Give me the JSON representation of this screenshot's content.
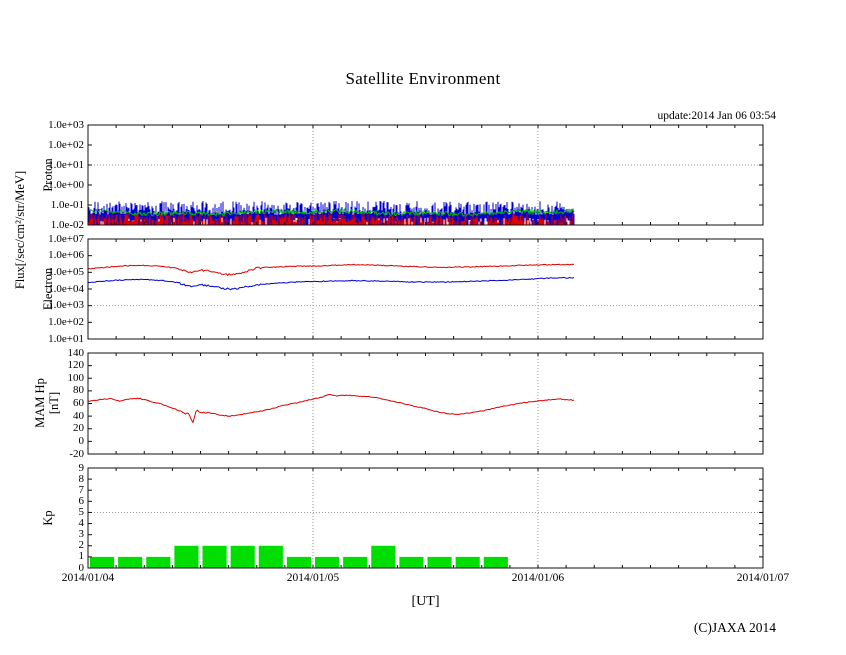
{
  "title": "Satellite Environment",
  "update_label": "update:2014 Jan 06 03:54",
  "flux_axis_label": "Flux[/sec/cm²/str/MeV]",
  "footer": {
    "xlabel": "[UT]",
    "copyright": "(C)JAXA 2014"
  },
  "colors": {
    "red": "#dd0000",
    "blue": "#0000cc",
    "green": "#00bb00",
    "kp_bar_green": "#00dd00",
    "grid_dotted": "#999999",
    "axis": "#111111"
  },
  "x_axis": {
    "tick_labels": [
      "2014/01/04",
      "2014/01/05",
      "2014/01/06",
      "2014/01/07"
    ],
    "span_days": 3,
    "minor_tick_hours": 3,
    "grid_day_lines": [
      1,
      2
    ],
    "data_end_day": 2.163
  },
  "chart_data": [
    {
      "id": "proton",
      "type": "line",
      "ylabel": "Proton",
      "yscale": "log",
      "ylim": [
        0.01,
        1000
      ],
      "ytick_labels": [
        "1.0e+03",
        "1.0e+02",
        "1.0e+01",
        "1.0e+00",
        "1.0e-01",
        "1.0e-02"
      ],
      "threshold_line": 10,
      "series": [
        {
          "name": "proton-high-noise",
          "color": "blue",
          "style": "noise-band",
          "band_low": 0.01,
          "band_top_min": 0.032,
          "band_top_max": 0.16
        },
        {
          "name": "proton-low-noise",
          "color": "red",
          "style": "noise-band",
          "band_low": 0.01,
          "band_top_min": 0.013,
          "band_top_max": 0.04
        },
        {
          "name": "proton-mid-channel",
          "color": "green",
          "style": "noisy-line-level",
          "level": 0.042,
          "wobble_decades": 0.1
        }
      ]
    },
    {
      "id": "electron",
      "type": "line",
      "ylabel": "Electron",
      "yscale": "log",
      "ylim": [
        10,
        10000000
      ],
      "ytick_labels": [
        "1.0e+07",
        "1.0e+06",
        "1.0e+05",
        "1.0e+04",
        "1.0e+03",
        "1.0e+02",
        "1.0e+01"
      ],
      "threshold_line": 1000,
      "series": [
        {
          "name": "electron-upper-channel",
          "color": "red",
          "style": "noisy-line",
          "points": [
            [
              0,
              160000
            ],
            [
              0.08,
              200000
            ],
            [
              0.17,
              250000
            ],
            [
              0.25,
              260000
            ],
            [
              0.33,
              230000
            ],
            [
              0.4,
              170000
            ],
            [
              0.445,
              110000
            ],
            [
              0.465,
              90000
            ],
            [
              0.49,
              135000
            ],
            [
              0.53,
              120000
            ],
            [
              0.58,
              95000
            ],
            [
              0.62,
              70000
            ],
            [
              0.66,
              80000
            ],
            [
              0.7,
              110000
            ],
            [
              0.75,
              180000
            ],
            [
              0.83,
              210000
            ],
            [
              0.92,
              230000
            ],
            [
              1.0,
              240000
            ],
            [
              1.08,
              260000
            ],
            [
              1.17,
              290000
            ],
            [
              1.25,
              280000
            ],
            [
              1.33,
              250000
            ],
            [
              1.42,
              225000
            ],
            [
              1.5,
              210000
            ],
            [
              1.58,
              200000
            ],
            [
              1.67,
              210000
            ],
            [
              1.75,
              220000
            ],
            [
              1.83,
              240000
            ],
            [
              1.92,
              260000
            ],
            [
              2.0,
              280000
            ],
            [
              2.08,
              290000
            ],
            [
              2.163,
              290000
            ]
          ]
        },
        {
          "name": "electron-lower-channel",
          "color": "blue",
          "style": "noisy-line",
          "points": [
            [
              0,
              25000
            ],
            [
              0.08,
              30000
            ],
            [
              0.17,
              36000
            ],
            [
              0.25,
              38000
            ],
            [
              0.33,
              32000
            ],
            [
              0.4,
              24000
            ],
            [
              0.445,
              15000
            ],
            [
              0.465,
              13000
            ],
            [
              0.49,
              18000
            ],
            [
              0.53,
              16000
            ],
            [
              0.58,
              13000
            ],
            [
              0.62,
              10000
            ],
            [
              0.66,
              10000
            ],
            [
              0.7,
              13000
            ],
            [
              0.75,
              18000
            ],
            [
              0.83,
              22000
            ],
            [
              0.92,
              26000
            ],
            [
              1.0,
              28000
            ],
            [
              1.08,
              30000
            ],
            [
              1.17,
              32000
            ],
            [
              1.25,
              31000
            ],
            [
              1.33,
              29000
            ],
            [
              1.42,
              27000
            ],
            [
              1.5,
              26000
            ],
            [
              1.58,
              26000
            ],
            [
              1.67,
              28000
            ],
            [
              1.75,
              30000
            ],
            [
              1.83,
              33000
            ],
            [
              1.92,
              37000
            ],
            [
              2.0,
              42000
            ],
            [
              2.08,
              46000
            ],
            [
              2.163,
              48000
            ]
          ]
        }
      ]
    },
    {
      "id": "mam-hp",
      "type": "line",
      "ylabel": "MAM Hp",
      "ylabel2": "[nT]",
      "yscale": "linear",
      "ylim": [
        -20,
        140
      ],
      "ytick_labels": [
        "140",
        "120",
        "100",
        "80",
        "60",
        "40",
        "20",
        "0",
        "-20"
      ],
      "threshold_line": null,
      "series": [
        {
          "name": "mam-hp-field",
          "color": "red",
          "style": "noisy-line",
          "points": [
            [
              0,
              63
            ],
            [
              0.05,
              66
            ],
            [
              0.1,
              68
            ],
            [
              0.14,
              64
            ],
            [
              0.18,
              67
            ],
            [
              0.23,
              68
            ],
            [
              0.27,
              64
            ],
            [
              0.32,
              60
            ],
            [
              0.36,
              55
            ],
            [
              0.41,
              48
            ],
            [
              0.45,
              42
            ],
            [
              0.468,
              30
            ],
            [
              0.482,
              49
            ],
            [
              0.5,
              44
            ],
            [
              0.54,
              46
            ],
            [
              0.58,
              42
            ],
            [
              0.63,
              40
            ],
            [
              0.67,
              42
            ],
            [
              0.72,
              45
            ],
            [
              0.77,
              48
            ],
            [
              0.82,
              52
            ],
            [
              0.87,
              57
            ],
            [
              0.94,
              62
            ],
            [
              1.0,
              67
            ],
            [
              1.04,
              70
            ],
            [
              1.07,
              75
            ],
            [
              1.1,
              72
            ],
            [
              1.15,
              73
            ],
            [
              1.2,
              72
            ],
            [
              1.25,
              71
            ],
            [
              1.3,
              68
            ],
            [
              1.35,
              64
            ],
            [
              1.4,
              60
            ],
            [
              1.45,
              56
            ],
            [
              1.5,
              52
            ],
            [
              1.55,
              47
            ],
            [
              1.6,
              44
            ],
            [
              1.65,
              43
            ],
            [
              1.7,
              45
            ],
            [
              1.75,
              48
            ],
            [
              1.8,
              52
            ],
            [
              1.85,
              56
            ],
            [
              1.9,
              59
            ],
            [
              1.95,
              62
            ],
            [
              2.0,
              64
            ],
            [
              2.05,
              66
            ],
            [
              2.1,
              67
            ],
            [
              2.13,
              66
            ],
            [
              2.163,
              65
            ]
          ]
        }
      ]
    },
    {
      "id": "kp",
      "type": "bar",
      "ylabel": "Kp",
      "yscale": "linear",
      "ylim": [
        0,
        9
      ],
      "ytick_labels": [
        "9",
        "8",
        "7",
        "6",
        "5",
        "4",
        "3",
        "2",
        "1",
        "0"
      ],
      "threshold_line": 5,
      "bar_hours": 3,
      "bars": [
        1,
        1,
        1,
        2,
        2,
        2,
        2,
        1,
        1,
        1,
        2,
        1,
        1,
        1,
        1
      ]
    }
  ]
}
